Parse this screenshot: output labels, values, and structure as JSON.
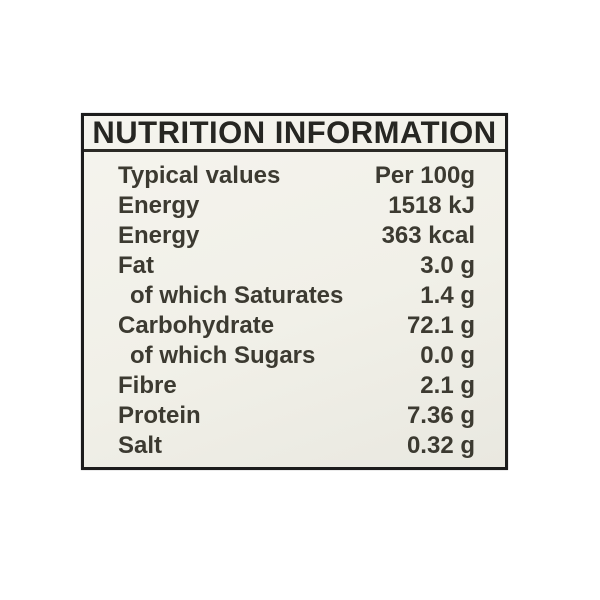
{
  "label": {
    "title": "NUTRITION INFORMATION",
    "columns": {
      "name_header": "Typical values",
      "value_header": "Per 100g"
    },
    "rows": [
      {
        "name": "Typical values",
        "value": "Per 100g",
        "indent": false
      },
      {
        "name": "Energy",
        "value": "1518 kJ",
        "indent": false
      },
      {
        "name": "Energy",
        "value": "363 kcal",
        "indent": false
      },
      {
        "name": "Fat",
        "value": "3.0 g",
        "indent": false
      },
      {
        "name": "of which Saturates",
        "value": "1.4 g",
        "indent": true
      },
      {
        "name": "Carbohydrate",
        "value": "72.1 g",
        "indent": false
      },
      {
        "name": "of which Sugars",
        "value": "0.0 g",
        "indent": true
      },
      {
        "name": "Fibre",
        "value": "2.1 g",
        "indent": false
      },
      {
        "name": "Protein",
        "value": "7.36 g",
        "indent": false
      },
      {
        "name": "Salt",
        "value": "0.32 g",
        "indent": false
      }
    ],
    "colors": {
      "border": "#1c1c1c",
      "label_background": "#f1f0e8",
      "text": "#3c3a31",
      "title_text": "#262622",
      "page_background": "#ffffff"
    }
  }
}
